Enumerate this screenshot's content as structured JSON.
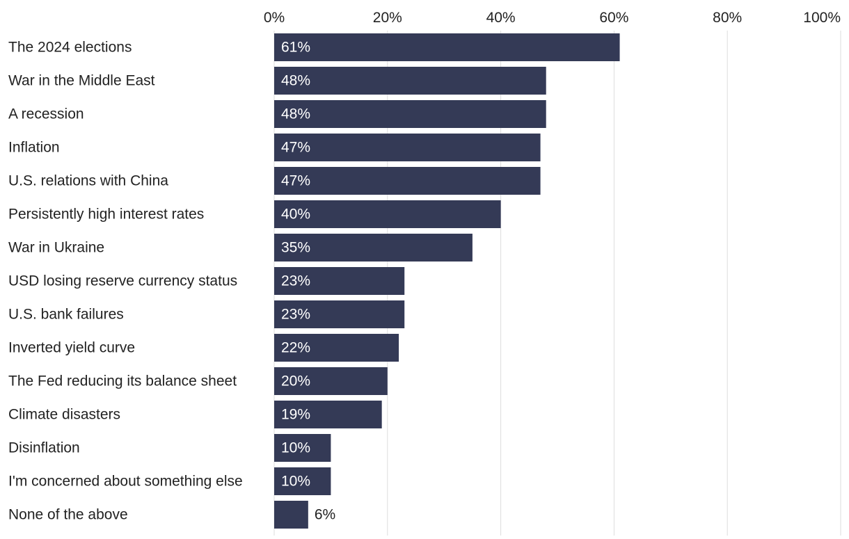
{
  "chart_data": {
    "type": "bar",
    "orientation": "horizontal",
    "title": "",
    "xlabel": "",
    "ylabel": "",
    "xlim": [
      0,
      100
    ],
    "ticks": [
      0,
      20,
      40,
      60,
      80,
      100
    ],
    "tick_labels": [
      "0%",
      "20%",
      "40%",
      "60%",
      "80%",
      "100%"
    ],
    "axis_position": "top",
    "grid": true,
    "categories": [
      "The 2024 elections",
      "War in the Middle East",
      "A recession",
      "Inflation",
      "U.S. relations with China",
      "Persistently high interest rates",
      "War in Ukraine",
      "USD losing reserve currency status",
      "U.S. bank failures",
      "Inverted yield curve",
      "The Fed reducing its balance sheet",
      "Climate disasters",
      "Disinflation",
      "I'm concerned about something else",
      "None of the above"
    ],
    "values": [
      61,
      48,
      48,
      47,
      47,
      40,
      35,
      23,
      23,
      22,
      20,
      19,
      10,
      10,
      6
    ],
    "value_labels": [
      "61%",
      "48%",
      "48%",
      "47%",
      "47%",
      "40%",
      "35%",
      "23%",
      "23%",
      "22%",
      "20%",
      "19%",
      "10%",
      "10%",
      "6%"
    ],
    "colors": {
      "bar": "#343a56",
      "label_inside": "#ffffff",
      "label_outside": "#222222",
      "grid": "#dddddd",
      "text": "#222222"
    }
  }
}
